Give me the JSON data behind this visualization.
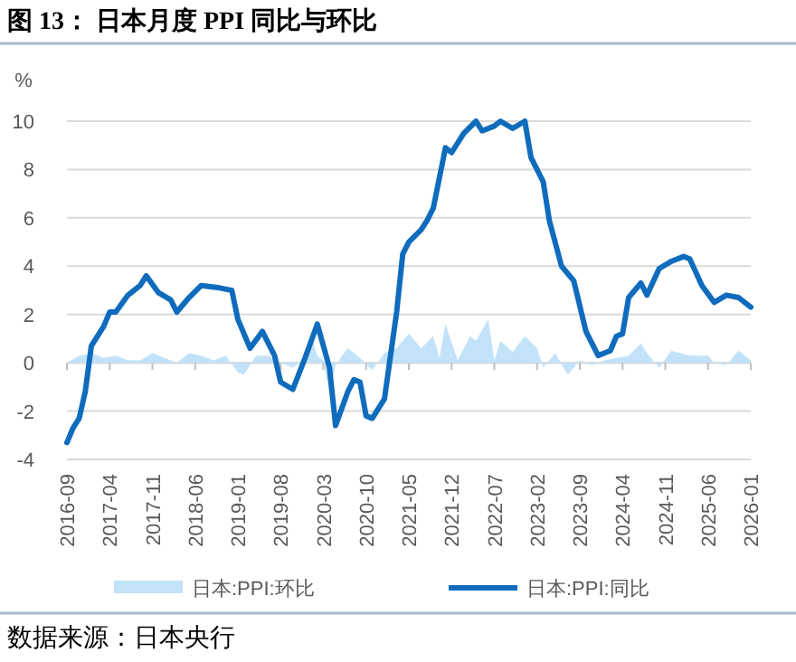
{
  "chart_data": {
    "type": "line",
    "title": "图 13： 日本月度 PPI 同比与环比",
    "ylabel": "%",
    "annotations": [
      "数据来源：日本央行"
    ],
    "xlim": [
      "2016-09",
      "2026-01"
    ],
    "xticks": [
      "2016-09",
      "2017-04",
      "2017-11",
      "2018-06",
      "2019-01",
      "2019-08",
      "2020-03",
      "2020-10",
      "2021-05",
      "2021-12",
      "2022-07",
      "2023-02",
      "2023-09",
      "2024-04",
      "2024-11",
      "2025-06",
      "2026-01"
    ],
    "ylim": [
      -4,
      10
    ],
    "yticks": [
      -4,
      -2,
      0,
      2,
      4,
      6,
      8,
      10
    ],
    "grid": "y",
    "legend": "bottom",
    "series": [
      {
        "name": "日本:PPI:环比",
        "type": "area",
        "color": "#c2e2fa",
        "x": [
          "2016-09",
          "2016-11",
          "2017-01",
          "2017-03",
          "2017-05",
          "2017-07",
          "2017-09",
          "2017-11",
          "2018-01",
          "2018-03",
          "2018-05",
          "2018-07",
          "2018-09",
          "2018-11",
          "2019-01",
          "2019-02",
          "2019-04",
          "2019-06",
          "2019-08",
          "2019-10",
          "2019-12",
          "2020-01",
          "2020-02",
          "2020-03",
          "2020-04",
          "2020-05",
          "2020-07",
          "2020-09",
          "2020-11",
          "2021-01",
          "2021-03",
          "2021-05",
          "2021-07",
          "2021-09",
          "2021-10",
          "2021-11",
          "2022-01",
          "2022-03",
          "2022-04",
          "2022-06",
          "2022-07",
          "2022-08",
          "2022-10",
          "2022-12",
          "2023-02",
          "2023-03",
          "2023-05",
          "2023-07",
          "2023-09",
          "2023-11",
          "2024-01",
          "2024-05",
          "2024-07",
          "2024-08",
          "2024-10",
          "2024-12",
          "2025-03",
          "2025-06",
          "2025-07",
          "2025-09",
          "2025-11",
          "2026-01"
        ],
        "values": [
          0,
          0.3,
          0.4,
          0.2,
          0.3,
          0.1,
          0.1,
          0.4,
          0.2,
          0,
          0.4,
          0.3,
          0.1,
          0.3,
          -0.4,
          -0.5,
          0.3,
          0.3,
          0,
          -0.2,
          0.2,
          1.1,
          0.3,
          0.1,
          -1.3,
          -0.1,
          0.6,
          0.2,
          -0.3,
          0.4,
          0.6,
          1.2,
          0.6,
          1.1,
          0.2,
          1.6,
          0.1,
          1.1,
          0.9,
          1.8,
          0.1,
          0.9,
          0.45,
          1.1,
          0.6,
          -0.2,
          0.4,
          -0.5,
          0.1,
          -0.1,
          0.1,
          0.3,
          0.8,
          0.4,
          -0.2,
          0.5,
          0.3,
          0.3,
          0,
          -0.1,
          0.5,
          0.1
        ]
      },
      {
        "name": "日本:PPI:同比",
        "type": "line",
        "color": "#0f6cbd",
        "x": [
          "2016-09",
          "2016-10",
          "2016-11",
          "2016-12",
          "2017-01",
          "2017-03",
          "2017-04",
          "2017-05",
          "2017-07",
          "2017-09",
          "2017-10",
          "2017-12",
          "2018-02",
          "2018-03",
          "2018-05",
          "2018-07",
          "2018-10",
          "2018-12",
          "2019-01",
          "2019-03",
          "2019-05",
          "2019-07",
          "2019-08",
          "2019-10",
          "2019-12",
          "2020-02",
          "2020-04",
          "2020-05",
          "2020-07",
          "2020-08",
          "2020-09",
          "2020-10",
          "2020-11",
          "2021-01",
          "2021-03",
          "2021-04",
          "2021-05",
          "2021-07",
          "2021-08",
          "2021-09",
          "2021-11",
          "2021-12",
          "2022-02",
          "2022-04",
          "2022-05",
          "2022-07",
          "2022-08",
          "2022-10",
          "2022-12",
          "2023-01",
          "2023-03",
          "2023-04",
          "2023-06",
          "2023-08",
          "2023-10",
          "2023-12",
          "2024-02",
          "2024-03",
          "2024-04",
          "2024-05",
          "2024-07",
          "2024-08",
          "2024-10",
          "2024-12",
          "2025-02",
          "2025-03",
          "2025-05",
          "2025-07",
          "2025-09",
          "2025-11",
          "2026-01"
        ],
        "values": [
          -3.3,
          -2.7,
          -2.3,
          -1.2,
          0.7,
          1.5,
          2.1,
          2.1,
          2.8,
          3.2,
          3.6,
          2.9,
          2.6,
          2.1,
          2.7,
          3.2,
          3.1,
          3.0,
          1.8,
          0.6,
          1.3,
          0.3,
          -0.8,
          -1.1,
          0.2,
          1.6,
          -0.2,
          -2.6,
          -1.2,
          -0.7,
          -0.8,
          -2.2,
          -2.3,
          -1.5,
          2.1,
          4.5,
          5.0,
          5.5,
          5.9,
          6.4,
          8.9,
          8.7,
          9.5,
          10.0,
          9.6,
          9.8,
          10.0,
          9.7,
          10.0,
          8.5,
          7.5,
          5.9,
          4.0,
          3.4,
          1.3,
          0.3,
          0.5,
          1.1,
          1.2,
          2.7,
          3.3,
          2.8,
          3.9,
          4.2,
          4.4,
          4.3,
          3.2,
          2.5,
          2.8,
          2.7,
          2.3
        ]
      }
    ]
  }
}
